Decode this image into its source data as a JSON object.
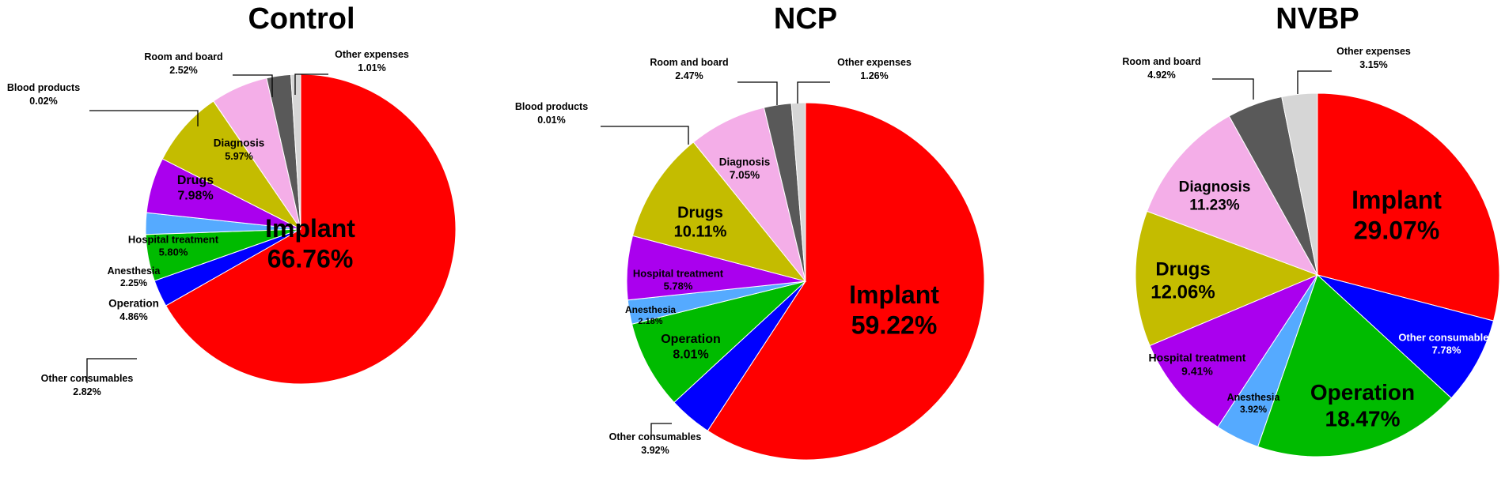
{
  "colors": {
    "Implant": "#ff0000",
    "Other consumables": "#0000ff",
    "Operation": "#00bb00",
    "Anesthesia": "#55aaff",
    "Hospital treatment": "#aa00ee",
    "Drugs": "#c4bc00",
    "Blood products": "#aaaaaa",
    "Diagnosis": "#f4aee8",
    "Room and board": "#595959",
    "Other expenses": "#d6d6d6"
  },
  "chart_data": [
    {
      "type": "pie",
      "title": "Control",
      "labels": [
        "Implant",
        "Other consumables",
        "Operation",
        "Anesthesia",
        "Hospital treatment",
        "Drugs",
        "Blood products",
        "Diagnosis",
        "Room and board",
        "Other expenses"
      ],
      "values": [
        66.76,
        2.82,
        4.86,
        2.25,
        5.8,
        7.98,
        0.02,
        5.97,
        2.52,
        1.01
      ],
      "value_labels": [
        "66.76%",
        "2.82%",
        "4.86%",
        "2.25%",
        "5.80%",
        "7.98%",
        "0.02%",
        "5.97%",
        "2.52%",
        "1.01%"
      ]
    },
    {
      "type": "pie",
      "title": "NCP",
      "labels": [
        "Implant",
        "Other consumables",
        "Operation",
        "Anesthesia",
        "Hospital treatment",
        "Drugs",
        "Blood products",
        "Diagnosis",
        "Room and board",
        "Other expenses"
      ],
      "values": [
        59.22,
        3.92,
        8.01,
        2.18,
        5.78,
        10.11,
        0.01,
        7.05,
        2.47,
        1.26
      ],
      "value_labels": [
        "59.22%",
        "3.92%",
        "8.01%",
        "2.18%",
        "5.78%",
        "10.11%",
        "0.01%",
        "7.05%",
        "2.47%",
        "1.26%"
      ]
    },
    {
      "type": "pie",
      "title": "NVBP",
      "labels": [
        "Implant",
        "Other consumables",
        "Operation",
        "Anesthesia",
        "Hospital treatment",
        "Drugs",
        "Diagnosis",
        "Room and board",
        "Other expenses"
      ],
      "values": [
        29.07,
        7.78,
        18.47,
        3.92,
        9.41,
        12.06,
        11.23,
        4.92,
        3.15
      ],
      "value_labels": [
        "29.07%",
        "7.78%",
        "18.47%",
        "3.92%",
        "9.41%",
        "12.06%",
        "11.23%",
        "4.92%",
        "3.15%"
      ]
    }
  ]
}
